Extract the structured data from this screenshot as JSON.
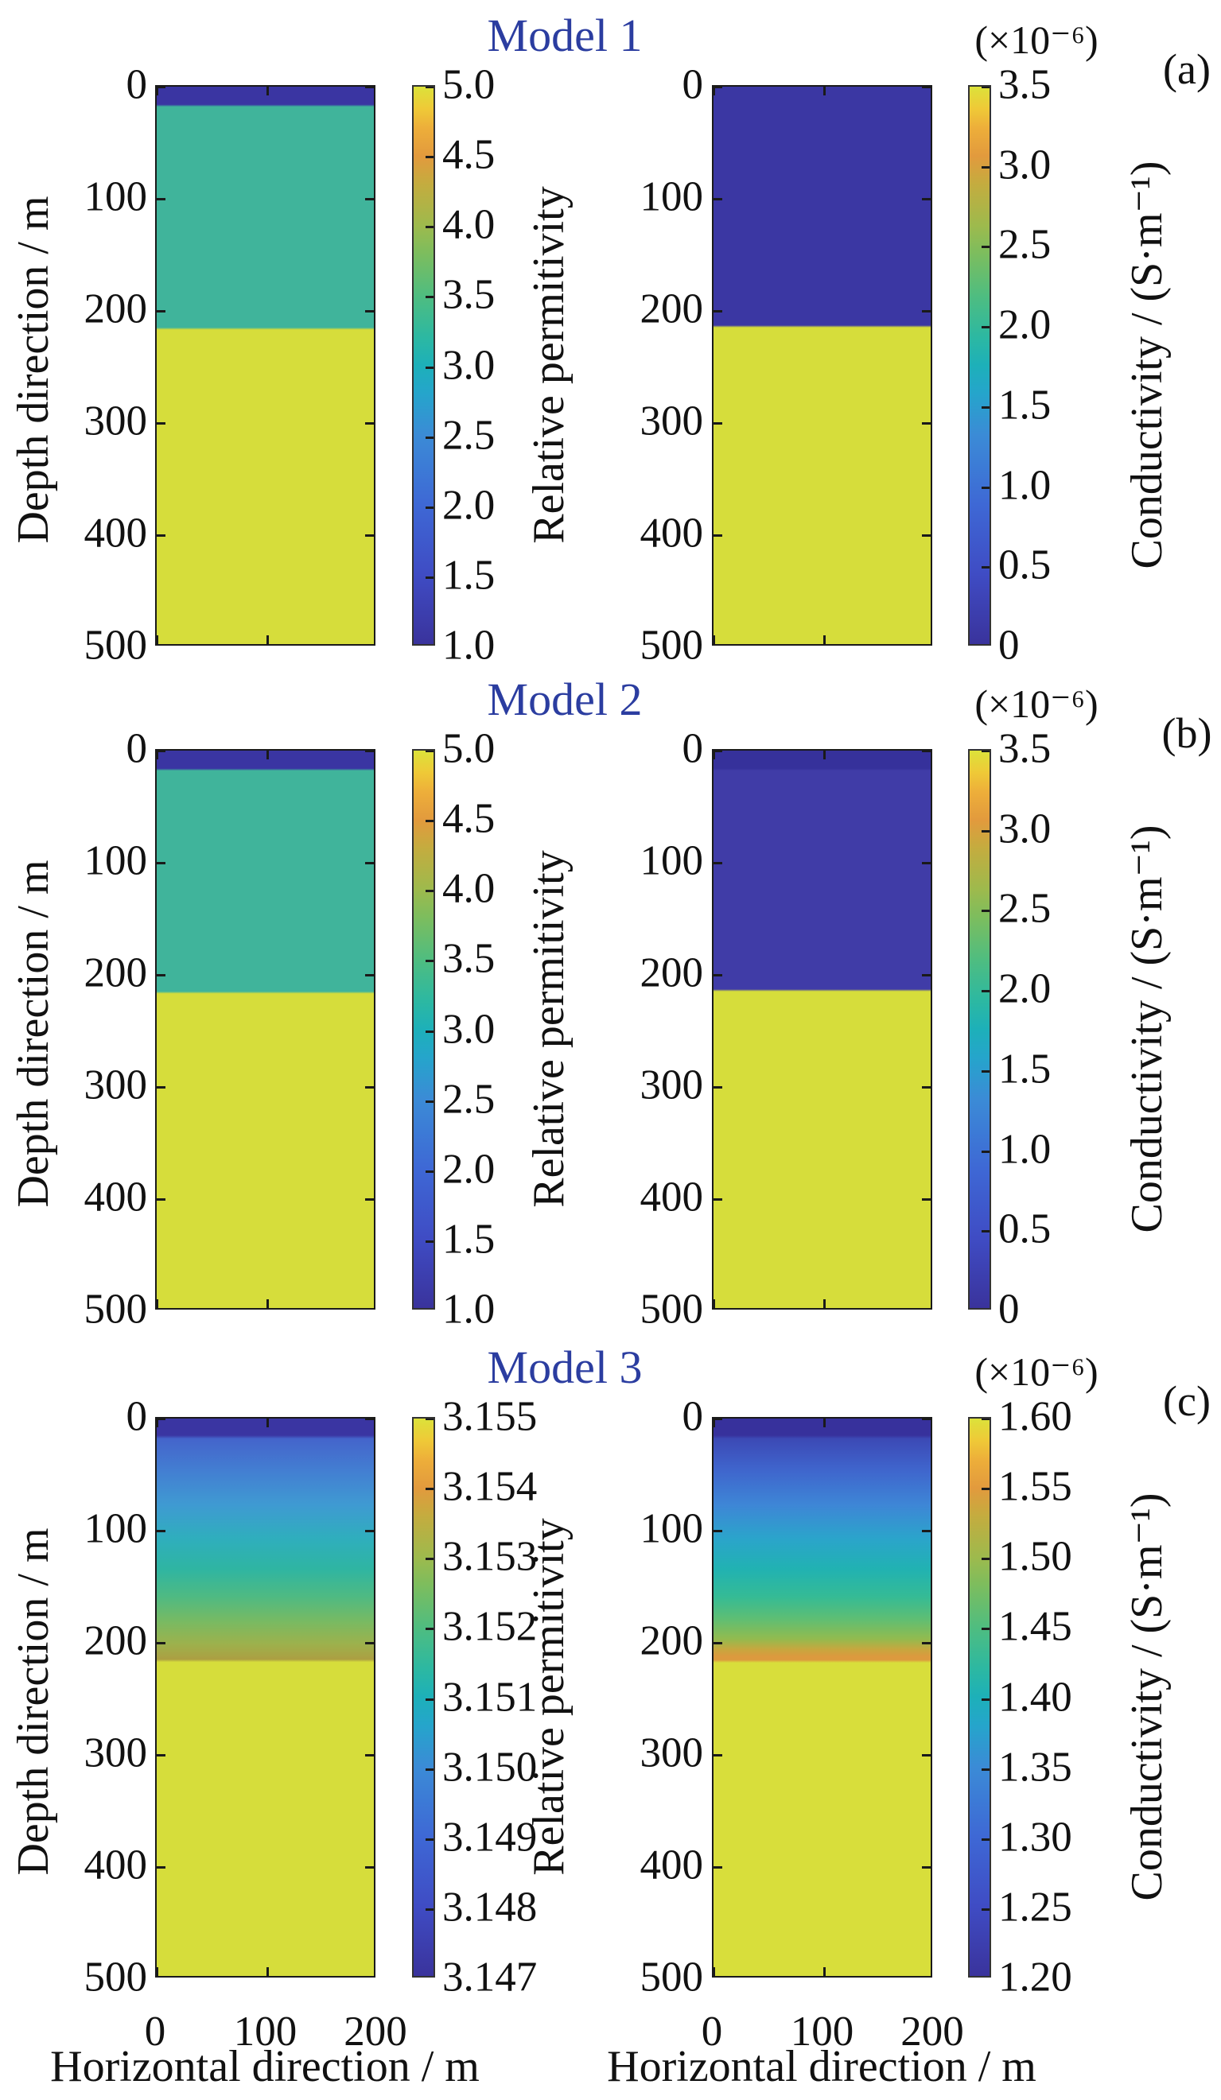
{
  "axes": {
    "x_label": "Horizontal direction / m",
    "y_label": "Depth direction / m",
    "x_ticks": [
      "0",
      "100",
      "200"
    ],
    "y_ticks": [
      "0",
      "100",
      "200",
      "300",
      "400",
      "500"
    ]
  },
  "colorbars": {
    "permittivity_label": "Relative permitivity",
    "conductivity_label": "Conductivity / (S·m⁻¹)",
    "conductivity_scale_note": "(×10⁻⁶)"
  },
  "models": [
    {
      "title": "Model 1",
      "panel_label": "(a)",
      "perm_ticks": [
        "5.0",
        "4.5",
        "4.0",
        "3.5",
        "3.0",
        "2.5",
        "2.0",
        "1.5",
        "1.0"
      ],
      "cond_ticks": [
        "3.5",
        "3.0",
        "2.5",
        "2.0",
        "1.5",
        "1.0",
        "0.5",
        "0"
      ]
    },
    {
      "title": "Model 2",
      "panel_label": "(b)",
      "perm_ticks": [
        "5.0",
        "4.5",
        "4.0",
        "3.5",
        "3.0",
        "2.5",
        "2.0",
        "1.5",
        "1.0"
      ],
      "cond_ticks": [
        "3.5",
        "3.0",
        "2.5",
        "2.0",
        "1.5",
        "1.0",
        "0.5",
        "0"
      ]
    },
    {
      "title": "Model 3",
      "panel_label": "(c)",
      "perm_ticks": [
        "3.155",
        "3.154",
        "3.153",
        "3.152",
        "3.151",
        "3.150",
        "3.149",
        "3.148",
        "3.147"
      ],
      "cond_ticks": [
        "1.60",
        "1.55",
        "1.50",
        "1.45",
        "1.40",
        "1.35",
        "1.30",
        "1.25",
        "1.20"
      ]
    }
  ],
  "colors": {
    "title_blue": "#2B3DA0",
    "layer_air_dark_blue": "#3A35A2",
    "layer_teal": "#40B49B",
    "layer_yellow": "#D6DD3B",
    "model3_orange_band": "#DC9A3E",
    "colormap_bottom": "#3A339C",
    "colormap_top": "#DCE23A"
  },
  "chart_data": [
    {
      "type": "heatmap",
      "model": "Model 1",
      "panel_label": "(a)",
      "quantity": "Relative permitivity",
      "x": {
        "label": "Horizontal direction / m",
        "range": [
          0,
          200
        ]
      },
      "y": {
        "label": "Depth direction / m",
        "range": [
          0,
          500
        ],
        "positive": "down"
      },
      "colorbar": {
        "range": [
          1.0,
          5.0
        ],
        "ticks": [
          5.0,
          4.5,
          4.0,
          3.5,
          3.0,
          2.5,
          2.0,
          1.5,
          1.0
        ],
        "colormap": "parula"
      },
      "layers": [
        {
          "depth_m": [
            0,
            15
          ],
          "value": 1.0,
          "appearance": "dark blue band"
        },
        {
          "depth_m": [
            15,
            220
          ],
          "value": 3.0,
          "appearance": "teal"
        },
        {
          "depth_m": [
            220,
            500
          ],
          "value": 5.0,
          "appearance": "yellow"
        }
      ]
    },
    {
      "type": "heatmap",
      "model": "Model 1",
      "panel_label": "(a)",
      "quantity": "Conductivity / (S·m⁻¹)",
      "scale": "×10⁻⁶",
      "x": {
        "label": "Horizontal direction / m",
        "range": [
          0,
          200
        ]
      },
      "y": {
        "label": "Depth direction / m",
        "range": [
          0,
          500
        ],
        "positive": "down"
      },
      "colorbar": {
        "range": [
          0,
          3.5
        ],
        "ticks": [
          3.5,
          3.0,
          2.5,
          2.0,
          1.5,
          1.0,
          0.5,
          0
        ],
        "colormap": "parula"
      },
      "layers": [
        {
          "depth_m": [
            0,
            218
          ],
          "value": 0.0,
          "appearance": "dark blue"
        },
        {
          "depth_m": [
            218,
            500
          ],
          "value": 3.4,
          "appearance": "yellow"
        }
      ]
    },
    {
      "type": "heatmap",
      "model": "Model 2",
      "panel_label": "(b)",
      "quantity": "Relative permitivity",
      "x": {
        "label": "Horizontal direction / m",
        "range": [
          0,
          200
        ]
      },
      "y": {
        "label": "Depth direction / m",
        "range": [
          0,
          500
        ],
        "positive": "down"
      },
      "colorbar": {
        "range": [
          1.0,
          5.0
        ],
        "ticks": [
          5.0,
          4.5,
          4.0,
          3.5,
          3.0,
          2.5,
          2.0,
          1.5,
          1.0
        ],
        "colormap": "parula"
      },
      "layers": [
        {
          "depth_m": [
            0,
            15
          ],
          "value": 1.0,
          "appearance": "dark blue band"
        },
        {
          "depth_m": [
            15,
            220
          ],
          "value": 3.0,
          "appearance": "teal"
        },
        {
          "depth_m": [
            220,
            500
          ],
          "value": 5.0,
          "appearance": "yellow"
        }
      ]
    },
    {
      "type": "heatmap",
      "model": "Model 2",
      "panel_label": "(b)",
      "quantity": "Conductivity / (S·m⁻¹)",
      "scale": "×10⁻⁶",
      "x": {
        "label": "Horizontal direction / m",
        "range": [
          0,
          200
        ]
      },
      "y": {
        "label": "Depth direction / m",
        "range": [
          0,
          500
        ],
        "positive": "down"
      },
      "colorbar": {
        "range": [
          0,
          3.5
        ],
        "ticks": [
          3.5,
          3.0,
          2.5,
          2.0,
          1.5,
          1.0,
          0.5,
          0
        ],
        "colormap": "parula"
      },
      "layers": [
        {
          "depth_m": [
            0,
            15
          ],
          "value": 0.0,
          "appearance": "slightly darker blue band"
        },
        {
          "depth_m": [
            15,
            218
          ],
          "value": 0.1,
          "appearance": "dark blue"
        },
        {
          "depth_m": [
            218,
            500
          ],
          "value": 3.4,
          "appearance": "yellow"
        }
      ]
    },
    {
      "type": "heatmap",
      "model": "Model 3",
      "panel_label": "(c)",
      "quantity": "Relative permitivity",
      "x": {
        "label": "Horizontal direction / m",
        "range": [
          0,
          200
        ]
      },
      "y": {
        "label": "Depth direction / m",
        "range": [
          0,
          500
        ],
        "positive": "down"
      },
      "colorbar": {
        "range": [
          3.147,
          3.155
        ],
        "ticks": [
          3.155,
          3.154,
          3.153,
          3.152,
          3.151,
          3.15,
          3.149,
          3.148,
          3.147
        ],
        "colormap": "parula"
      },
      "layers": [
        {
          "depth_m": [
            0,
            15
          ],
          "value": "≤3.147 (colormap minimum)",
          "appearance": "dark blue band"
        },
        {
          "depth_m": [
            15,
            220
          ],
          "value": "gradient ≈3.148 → ≈3.1535",
          "appearance": "blue → teal → green → olive gradient"
        },
        {
          "depth_m": [
            220,
            500
          ],
          "value": 3.155,
          "appearance": "yellow"
        }
      ]
    },
    {
      "type": "heatmap",
      "model": "Model 3",
      "panel_label": "(c)",
      "quantity": "Conductivity / (S·m⁻¹)",
      "scale": "×10⁻⁶",
      "x": {
        "label": "Horizontal direction / m",
        "range": [
          0,
          200
        ]
      },
      "y": {
        "label": "Depth direction / m",
        "range": [
          0,
          500
        ],
        "positive": "down"
      },
      "colorbar": {
        "range": [
          1.2,
          1.6
        ],
        "ticks": [
          1.6,
          1.55,
          1.5,
          1.45,
          1.4,
          1.35,
          1.3,
          1.25,
          1.2
        ],
        "colormap": "parula"
      },
      "layers": [
        {
          "depth_m": [
            0,
            15
          ],
          "value": 1.2,
          "appearance": "dark blue band"
        },
        {
          "depth_m": [
            15,
            220
          ],
          "value": "gradient ≈1.21 → ≈1.57",
          "appearance": "blue → teal → green → orange gradient, orange band just above 220 m"
        },
        {
          "depth_m": [
            220,
            500
          ],
          "value": 1.59,
          "appearance": "yellow"
        }
      ]
    }
  ]
}
